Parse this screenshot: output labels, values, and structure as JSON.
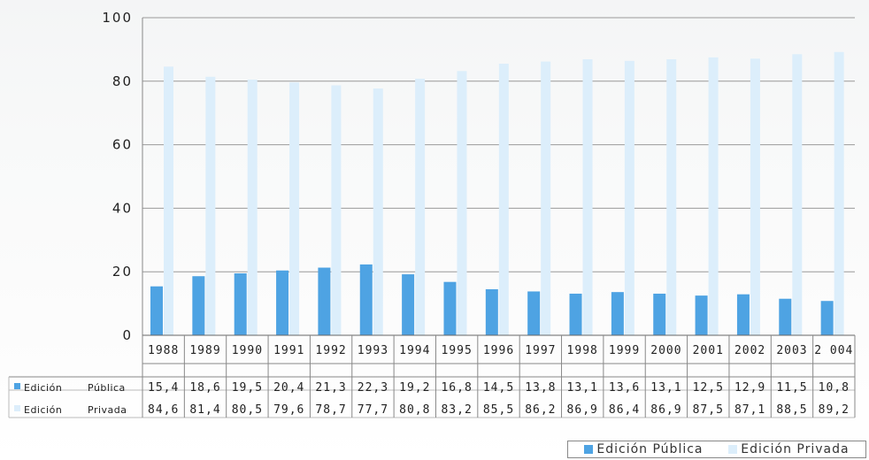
{
  "chart_data": {
    "type": "bar",
    "categories": [
      "1988",
      "1989",
      "1990",
      "1991",
      "1992",
      "1993",
      "1994",
      "1995",
      "1996",
      "1997",
      "1998",
      "1999",
      "2000",
      "2001",
      "2002",
      "2003",
      "2 004"
    ],
    "series": [
      {
        "name": "Edición Pública",
        "values": [
          15.4,
          18.6,
          19.5,
          20.4,
          21.3,
          22.3,
          19.2,
          16.8,
          14.5,
          13.8,
          13.1,
          13.6,
          13.1,
          12.5,
          12.9,
          11.5,
          10.8
        ],
        "color": "#4ea3e3"
      },
      {
        "name": "Edición Privada",
        "values": [
          84.6,
          81.4,
          80.5,
          79.6,
          78.7,
          77.7,
          80.8,
          83.2,
          85.5,
          86.2,
          86.9,
          86.4,
          86.9,
          87.5,
          87.1,
          88.5,
          89.2
        ],
        "color": "#dceefb"
      }
    ],
    "yticks": [
      "100",
      "80",
      "60",
      "40",
      "20",
      "0"
    ],
    "ylim": [
      0,
      100
    ],
    "table": {
      "row_names": [
        [
          "Edición",
          "Pública"
        ],
        [
          "Edición",
          "Privada"
        ]
      ],
      "rows": [
        [
          "15,4",
          "18,6",
          "19,5",
          "20,4",
          "21,3",
          "22,3",
          "19,2",
          "16,8",
          "14,5",
          "13,8",
          "13,1",
          "13,6",
          "13,1",
          "12,5",
          "12,9",
          "11,5",
          "10,8"
        ],
        [
          "84,6",
          "81,4",
          "80,5",
          "79,6",
          "78,7",
          "77,7",
          "80,8",
          "83,2",
          "85,5",
          "86,2",
          "86,9",
          "86,4",
          "86,9",
          "87,5",
          "87,1",
          "88,5",
          "89,2"
        ]
      ]
    },
    "legend": [
      "Edición Pública",
      "Edición Privada"
    ],
    "legend_position": "bottom-right",
    "grid": true
  }
}
